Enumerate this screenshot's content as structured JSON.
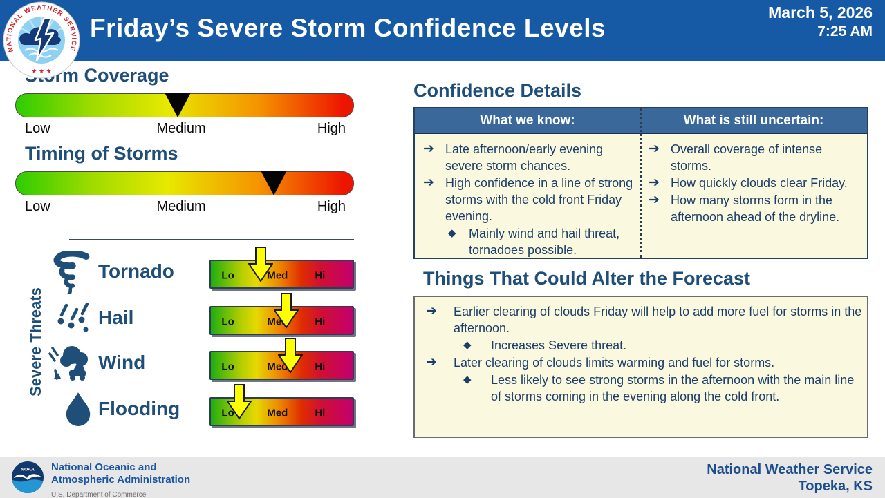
{
  "header": {
    "title": "Friday’s Severe Storm Confidence Levels",
    "date": "March 5, 2026",
    "time": "7:25 AM",
    "nws_logo_text": "NATIONAL WEATHER SERVICE",
    "nws_logo_stars": "★ ★ ★"
  },
  "glyphs": {
    "arrow": "➔",
    "diamond": "◆"
  },
  "gauges": [
    {
      "title": "Storm Coverage",
      "low": "Low",
      "medium": "Medium",
      "high": "High",
      "pointer_pct": 48
    },
    {
      "title": "Timing of Storms",
      "low": "Low",
      "medium": "Medium",
      "high": "High",
      "pointer_pct": 76.5
    }
  ],
  "threats": {
    "section_label": "Severe Threats",
    "scale": {
      "lo": "Lo",
      "med": "Med",
      "hi": "Hi"
    },
    "items": [
      {
        "name": "Tornado",
        "level_pct": 35
      },
      {
        "name": "Hail",
        "level_pct": 53
      },
      {
        "name": "Wind",
        "level_pct": 56
      },
      {
        "name": "Flooding",
        "level_pct": 20
      }
    ]
  },
  "confidence": {
    "title": "Confidence Details",
    "know": {
      "header": "What we know:",
      "items": [
        {
          "text": "Late afternoon/early evening severe storm chances."
        },
        {
          "text": "High confidence in a line of strong storms with the cold front Friday evening."
        },
        {
          "text": "Mainly wind and hail threat, tornadoes possible."
        }
      ]
    },
    "uncertain": {
      "header": "What is still uncertain:",
      "items": [
        {
          "text": "Overall coverage of intense storms."
        },
        {
          "text": "How quickly clouds clear Friday."
        },
        {
          "text": "How many storms form in the afternoon ahead of the dryline."
        }
      ]
    }
  },
  "alter": {
    "title": "Things That Could Alter the Forecast",
    "items": [
      {
        "text": "Earlier clearing of clouds Friday will help to add more fuel for storms in the afternoon."
      },
      {
        "text": "Increases Severe threat."
      },
      {
        "text": "Later clearing of clouds limits warming and fuel for storms."
      },
      {
        "text": "Less likely to see strong storms in the afternoon with the main line of storms coming in the evening along the cold front."
      }
    ]
  },
  "footer": {
    "noaa_logo_text": "NOAA",
    "noaa_line1": "National Oceanic and",
    "noaa_line2": "Atmospheric Administration",
    "noaa_sub": "U.S. Department of Commerce",
    "office_line1": "National Weather Service",
    "office_line2": "Topeka, KS"
  },
  "colors": {
    "header_blue": "#1659a5",
    "heading_navy": "#1f4e79",
    "text_navy": "#1c3e68",
    "table_header_blue": "#3a689b",
    "panel_cream": "#fbf8e0",
    "footer_gray": "#e7e7e7",
    "arrow_yellow": "#ffff00",
    "nws_red": "#d22630",
    "noaa_blue": "#1c55a0",
    "gauge_green": "#2ecc00",
    "gauge_yellow": "#e8e800",
    "gauge_orange": "#f59300",
    "gauge_red": "#ee1500",
    "threat_magenta": "#c4006e"
  }
}
